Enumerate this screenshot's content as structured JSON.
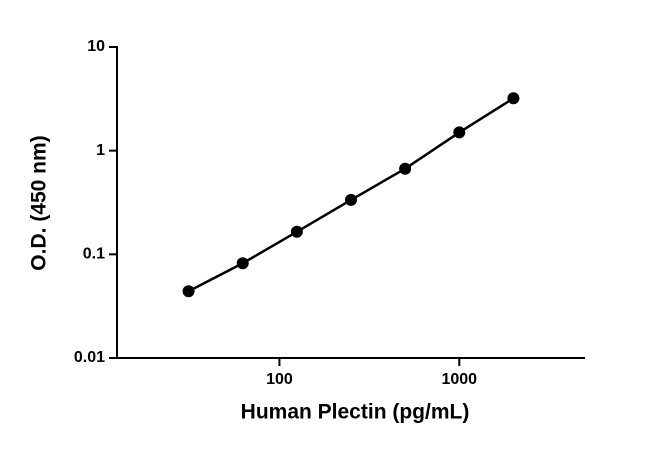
{
  "chart_data": {
    "type": "line",
    "x_label": "Human Plectin (pg/mL)",
    "y_label": "O.D. (450 nm)",
    "x": [
      31.25,
      62.5,
      125,
      250,
      500,
      1000,
      2000
    ],
    "series": [
      {
        "color": "#000000",
        "values": [
          0.044,
          0.082,
          0.165,
          0.335,
          0.67,
          1.5,
          3.2
        ]
      }
    ],
    "xscale": "log",
    "yscale": "log",
    "xlim": [
      12.5,
      5000
    ],
    "ylim": [
      0.01,
      10
    ],
    "xticks": [
      100,
      1000
    ],
    "yticks": [
      0.01,
      0.1,
      1,
      10
    ],
    "markers": true
  }
}
